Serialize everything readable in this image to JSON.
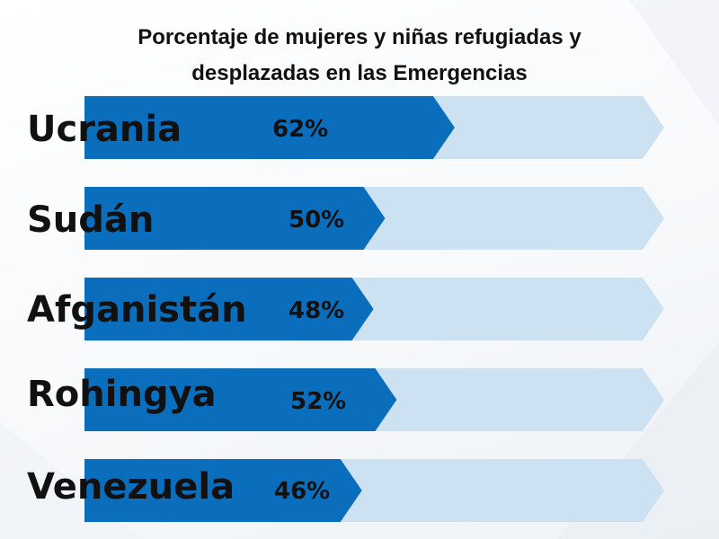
{
  "chart_data": {
    "type": "bar",
    "title_line1": "Porcentaje de mujeres y niñas refugiadas y",
    "title_line2": "desplazadas en las Emergencias",
    "categories": [
      "Ucrania",
      "Sudán",
      "Afganistán",
      "Rohingya",
      "Venezuela"
    ],
    "values": [
      62,
      50,
      48,
      52,
      46
    ],
    "value_labels": [
      "62%",
      "50%",
      "48%",
      "52%",
      "46%"
    ],
    "xlim": [
      0,
      100
    ],
    "colors": {
      "fill": "#0A6EBD",
      "track": "#CCE1F2",
      "text": "#111111"
    }
  }
}
